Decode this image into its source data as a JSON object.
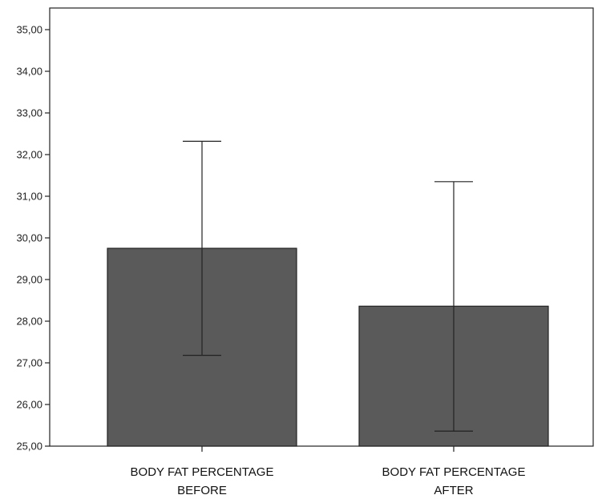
{
  "chart_data": {
    "type": "bar",
    "title": "",
    "xlabel": "",
    "ylabel": "",
    "ylim": [
      25,
      35
    ],
    "yticks": [
      "25,00",
      "26,00",
      "27,00",
      "28,00",
      "29,00",
      "30,00",
      "31,00",
      "32,00",
      "33,00",
      "34,00",
      "35,00"
    ],
    "categories": [
      {
        "line1": "BODY FAT PERCENTAGE",
        "line2": "BEFORE"
      },
      {
        "line1": "BODY FAT PERCENTAGE",
        "line2": "AFTER"
      }
    ],
    "values": [
      29.75,
      28.36
    ],
    "error_bars": [
      {
        "low": 27.18,
        "high": 32.32
      },
      {
        "low": 25.36,
        "high": 31.35
      }
    ],
    "grid": false,
    "legend": "none",
    "colors": {
      "bar": "#5a5a5a",
      "bar_stroke": "#222222",
      "axis": "#222222",
      "error": "#222222"
    }
  }
}
